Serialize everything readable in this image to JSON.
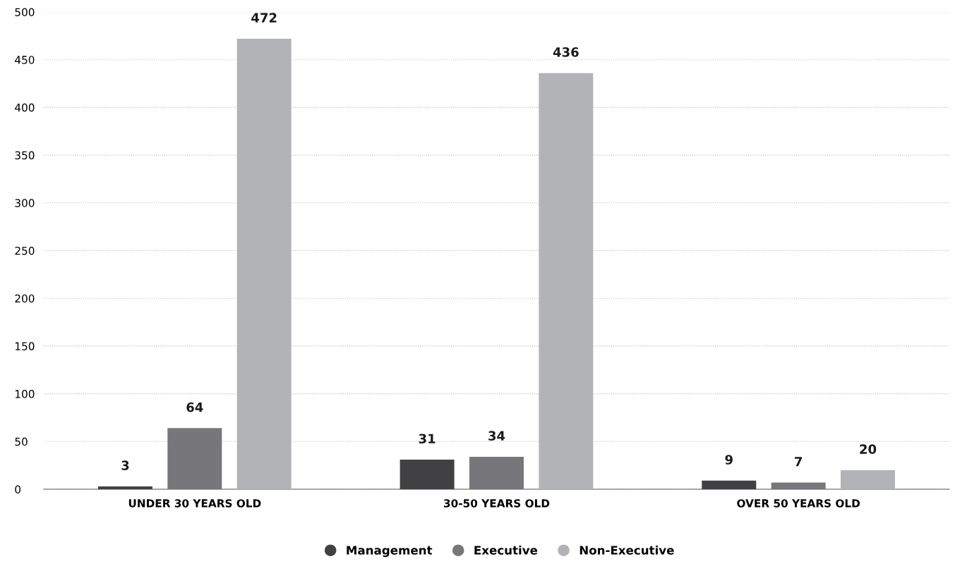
{
  "chart_data": {
    "type": "bar",
    "categories": [
      "UNDER 30 YEARS OLD",
      "30-50 YEARS OLD",
      "OVER 50 YEARS OLD"
    ],
    "series": [
      {
        "name": "Management",
        "color": "#414143",
        "values": [
          3,
          31,
          9
        ]
      },
      {
        "name": "Executive",
        "color": "#77777b",
        "values": [
          64,
          34,
          7
        ]
      },
      {
        "name": "Non-Executive",
        "color": "#b1b3b6",
        "values": [
          472,
          436,
          20
        ]
      }
    ],
    "ylim": [
      0,
      500
    ],
    "yticks": [
      0,
      50,
      100,
      150,
      200,
      250,
      300,
      350,
      400,
      450,
      500
    ],
    "grid": "y",
    "data_labels": true,
    "legend": "bottom",
    "marker": "circle"
  }
}
